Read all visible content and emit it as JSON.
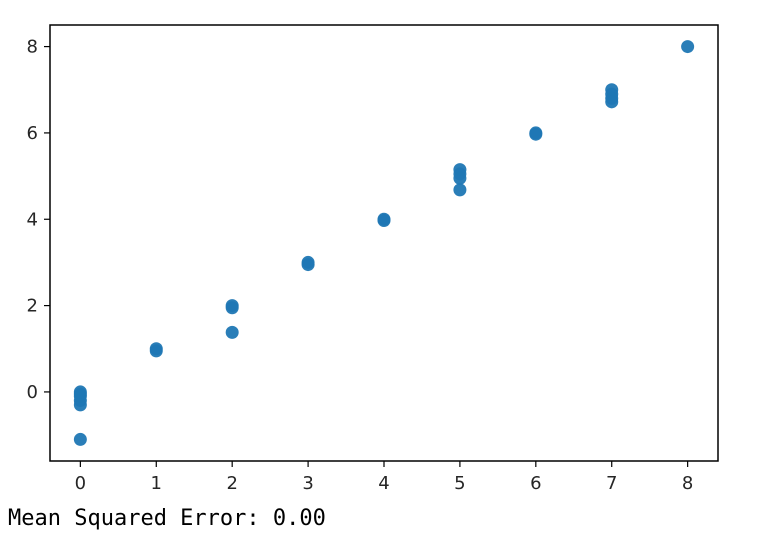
{
  "chart_data": {
    "type": "scatter",
    "title": "",
    "xlabel": "",
    "ylabel": "",
    "xlim": [
      -0.4,
      8.4
    ],
    "ylim": [
      -1.6,
      8.5
    ],
    "xticks": [
      0,
      1,
      2,
      3,
      4,
      5,
      6,
      7,
      8
    ],
    "yticks": [
      0,
      2,
      4,
      6,
      8
    ],
    "grid": false,
    "marker_color": "#1f77b4",
    "points": [
      {
        "x": 0,
        "y": 0.0
      },
      {
        "x": 0,
        "y": -0.05
      },
      {
        "x": 0,
        "y": -0.1
      },
      {
        "x": 0,
        "y": -0.2
      },
      {
        "x": 0,
        "y": -0.3
      },
      {
        "x": 0,
        "y": -1.1
      },
      {
        "x": 1,
        "y": 1.0
      },
      {
        "x": 1,
        "y": 0.95
      },
      {
        "x": 2,
        "y": 2.0
      },
      {
        "x": 2,
        "y": 1.95
      },
      {
        "x": 2,
        "y": 1.38
      },
      {
        "x": 3,
        "y": 3.0
      },
      {
        "x": 3,
        "y": 2.95
      },
      {
        "x": 4,
        "y": 4.0
      },
      {
        "x": 4,
        "y": 3.97
      },
      {
        "x": 5,
        "y": 5.15
      },
      {
        "x": 5,
        "y": 5.05
      },
      {
        "x": 5,
        "y": 4.95
      },
      {
        "x": 5,
        "y": 4.68
      },
      {
        "x": 6,
        "y": 6.0
      },
      {
        "x": 6,
        "y": 5.97
      },
      {
        "x": 7,
        "y": 7.0
      },
      {
        "x": 7,
        "y": 6.9
      },
      {
        "x": 7,
        "y": 6.8
      },
      {
        "x": 7,
        "y": 6.72
      },
      {
        "x": 8,
        "y": 8.0
      }
    ]
  },
  "output": {
    "text": "Mean Squared Error: 0.00"
  }
}
